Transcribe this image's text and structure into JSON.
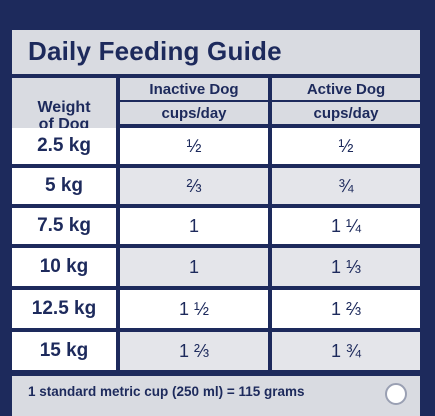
{
  "title": "Daily Feeding Guide",
  "header": {
    "weight_line1": "Weight",
    "weight_line2": "of Dog",
    "inactive_label": "Inactive Dog",
    "active_label": "Active Dog",
    "inactive_unit": "cups/day",
    "active_unit": "cups/day"
  },
  "rows": [
    {
      "weight": "2.5 kg",
      "inactive": "½",
      "active": "½"
    },
    {
      "weight": "5 kg",
      "inactive": "⅔",
      "active": "¾"
    },
    {
      "weight": "7.5 kg",
      "inactive": "1",
      "active": "1 ¼"
    },
    {
      "weight": "10 kg",
      "inactive": "1",
      "active": "1 ⅓"
    },
    {
      "weight": "12.5 kg",
      "inactive": "1 ½",
      "active": "1 ⅔"
    },
    {
      "weight": "15 kg",
      "inactive": "1 ⅔",
      "active": "1 ¾"
    }
  ],
  "footer": "1 standard metric cup (250 ml) = 115 grams",
  "colors": {
    "navy": "#1d2a5c",
    "grey": "#d9dbe1",
    "white": "#ffffff"
  }
}
